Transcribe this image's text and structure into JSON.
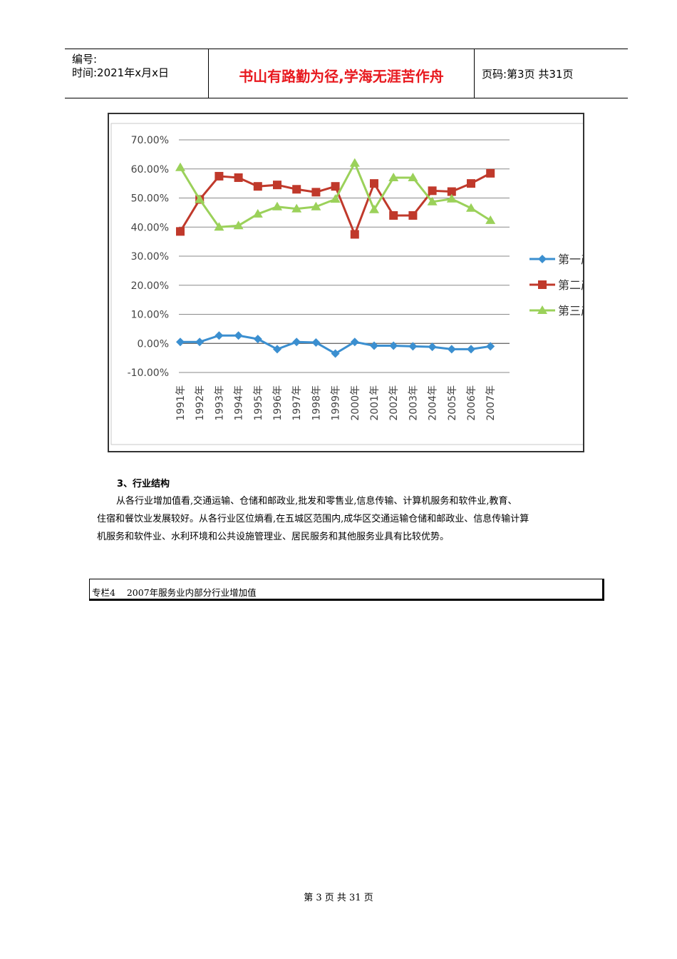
{
  "header": {
    "code_label": "编号:",
    "time_line": "时间:2021年x月x日",
    "motto": "书山有路勤为径,学海无涯苦作舟",
    "page_info": "页码:第3页 共31页"
  },
  "chart_data": {
    "type": "line",
    "categories": [
      "1991年",
      "1992年",
      "1993年",
      "1994年",
      "1995年",
      "1996年",
      "1997年",
      "1998年",
      "1999年",
      "2000年",
      "2001年",
      "2002年",
      "2003年",
      "2004年",
      "2005年",
      "2006年",
      "2007年"
    ],
    "ylim": [
      -10,
      70
    ],
    "yticks": [
      "70.00%",
      "60.00%",
      "50.00%",
      "40.00%",
      "30.00%",
      "20.00%",
      "10.00%",
      "0.00%",
      "-10.00%"
    ],
    "grid": true,
    "legend_position": "right",
    "series": [
      {
        "name": "第一产业",
        "color": "#3b8fd0",
        "marker": "diamond",
        "values": [
          0.5,
          0.5,
          2.7,
          2.7,
          1.5,
          -2,
          0.5,
          0.3,
          -3.5,
          0.5,
          -0.8,
          -0.8,
          -1,
          -1.2,
          -2,
          -2,
          -1
        ]
      },
      {
        "name": "第二产业",
        "color": "#c0392b",
        "marker": "square",
        "values": [
          38.5,
          49.5,
          57.5,
          57,
          54,
          54.5,
          53,
          52,
          54,
          37.5,
          55,
          44,
          44,
          52.5,
          52.2,
          55,
          58.5
        ]
      },
      {
        "name": "第三产业",
        "color": "#9bd15a",
        "marker": "triangle",
        "values": [
          60.5,
          49.5,
          40,
          40.5,
          44.5,
          47,
          46.3,
          47,
          49.6,
          62,
          46,
          57,
          57,
          48.7,
          49.7,
          46.5,
          42.3
        ]
      }
    ]
  },
  "section": {
    "title": "3、行业结构",
    "lines": [
      "从各行业增加值看,交通运输、仓储和邮政业,批发和零售业,信息传输、计算机服务和软件业,教育、",
      "住宿和餐饮业发展较好。从各行业区位熵看,在五城区范围内,成华区交通运输仓储和邮政业、信息传输计算",
      "机服务和软件业、水利环境和公共设施管理业、居民服务和其他服务业具有比较优势。"
    ]
  },
  "box": {
    "caption": "专栏4    2007年服务业内部分行业增加值"
  },
  "footer": {
    "text": "第 3 页 共 31 页"
  }
}
